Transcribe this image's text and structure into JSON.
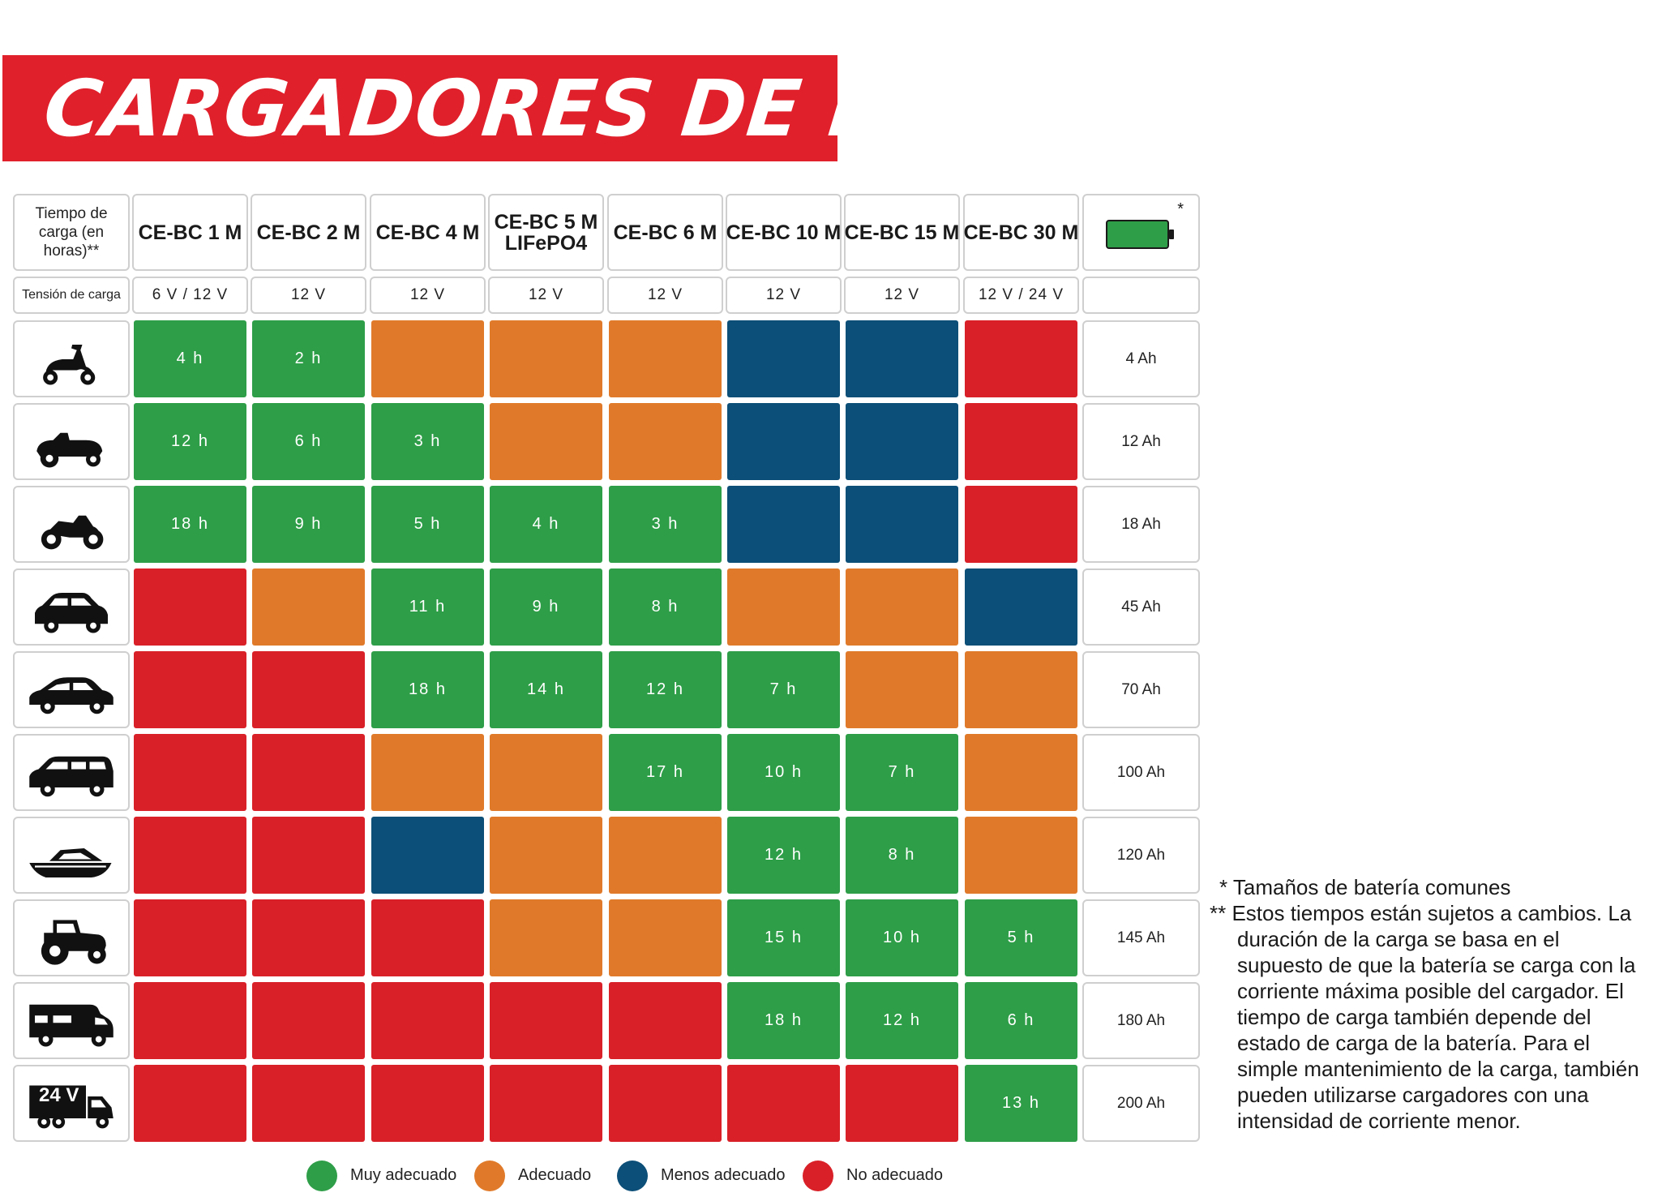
{
  "title": "CARGADORES DE BATERÍAS",
  "corner_label": "Tiempo de carga (en horas)**",
  "voltage_row_label": "Tensión de carga",
  "battery_column_marker": "*",
  "models": [
    {
      "name": "CE-BC 1 M",
      "subname": "",
      "voltage": "6 V / 12 V"
    },
    {
      "name": "CE-BC 2 M",
      "subname": "",
      "voltage": "12 V"
    },
    {
      "name": "CE-BC 4 M",
      "subname": "",
      "voltage": "12 V"
    },
    {
      "name": "CE-BC 5 M",
      "subname": "LIFePO4",
      "voltage": "12 V"
    },
    {
      "name": "CE-BC 6 M",
      "subname": "",
      "voltage": "12 V"
    },
    {
      "name": "CE-BC 10 M",
      "subname": "",
      "voltage": "12 V"
    },
    {
      "name": "CE-BC 15 M",
      "subname": "",
      "voltage": "12 V"
    },
    {
      "name": "CE-BC 30 M",
      "subname": "",
      "voltage": "12 V / 24 V"
    }
  ],
  "colors": {
    "G": "#2e9e48",
    "O": "#e07a2a",
    "B": "#0c4f78",
    "R": "#d92028"
  },
  "chart_data": {
    "type": "table",
    "title": "CARGADORES DE BATERÍAS",
    "rows": [
      {
        "vehicle_icon": "scooter-icon",
        "battery": "4 Ah",
        "ratings": [
          "G",
          "G",
          "O",
          "O",
          "O",
          "B",
          "B",
          "R"
        ],
        "times": [
          "4 h",
          "2 h",
          "",
          "",
          "",
          "",
          "",
          ""
        ]
      },
      {
        "vehicle_icon": "lawn-tractor-icon",
        "battery": "12 Ah",
        "ratings": [
          "G",
          "G",
          "G",
          "O",
          "O",
          "B",
          "B",
          "R"
        ],
        "times": [
          "12 h",
          "6 h",
          "3 h",
          "",
          "",
          "",
          "",
          ""
        ]
      },
      {
        "vehicle_icon": "motorcycle-icon",
        "battery": "18 Ah",
        "ratings": [
          "G",
          "G",
          "G",
          "G",
          "G",
          "B",
          "B",
          "R"
        ],
        "times": [
          "18 h",
          "9 h",
          "5 h",
          "4 h",
          "3 h",
          "",
          "",
          ""
        ]
      },
      {
        "vehicle_icon": "small-car-icon",
        "battery": "45 Ah",
        "ratings": [
          "R",
          "O",
          "G",
          "G",
          "G",
          "O",
          "O",
          "B"
        ],
        "times": [
          "",
          "",
          "11 h",
          "9 h",
          "8 h",
          "",
          "",
          ""
        ]
      },
      {
        "vehicle_icon": "sedan-icon",
        "battery": "70 Ah",
        "ratings": [
          "R",
          "R",
          "G",
          "G",
          "G",
          "G",
          "O",
          "O"
        ],
        "times": [
          "",
          "",
          "18 h",
          "14 h",
          "12 h",
          "7 h",
          "",
          ""
        ]
      },
      {
        "vehicle_icon": "station-wagon-icon",
        "battery": "100 Ah",
        "ratings": [
          "R",
          "R",
          "O",
          "O",
          "G",
          "G",
          "G",
          "O"
        ],
        "times": [
          "",
          "",
          "",
          "",
          "17 h",
          "10 h",
          "7 h",
          ""
        ]
      },
      {
        "vehicle_icon": "boat-icon",
        "battery": "120 Ah",
        "ratings": [
          "R",
          "R",
          "B",
          "O",
          "O",
          "G",
          "G",
          "O"
        ],
        "times": [
          "",
          "",
          "",
          "",
          "",
          "12 h",
          "8 h",
          ""
        ]
      },
      {
        "vehicle_icon": "farm-tractor-icon",
        "battery": "145 Ah",
        "ratings": [
          "R",
          "R",
          "R",
          "O",
          "O",
          "G",
          "G",
          "G"
        ],
        "times": [
          "",
          "",
          "",
          "",
          "",
          "15 h",
          "10 h",
          "5 h"
        ]
      },
      {
        "vehicle_icon": "motorhome-icon",
        "battery": "180 Ah",
        "ratings": [
          "R",
          "R",
          "R",
          "R",
          "R",
          "G",
          "G",
          "G"
        ],
        "times": [
          "",
          "",
          "",
          "",
          "",
          "18 h",
          "12 h",
          "6 h"
        ]
      },
      {
        "vehicle_icon": "truck-24v-icon",
        "vehicle_label": "24 V",
        "battery": "200 Ah",
        "ratings": [
          "R",
          "R",
          "R",
          "R",
          "R",
          "R",
          "R",
          "G"
        ],
        "times": [
          "",
          "",
          "",
          "",
          "",
          "",
          "",
          "13 h"
        ]
      }
    ]
  },
  "legend": [
    {
      "rating": "G",
      "label": "Muy adecuado"
    },
    {
      "rating": "O",
      "label": "Adecuado"
    },
    {
      "rating": "B",
      "label": "Menos adecuado"
    },
    {
      "rating": "R",
      "label": "No adecuado"
    }
  ],
  "notes": {
    "note1": "* Tamaños de batería comunes",
    "note2": "** Estos tiempos están sujetos a cambios. La duración de la carga se basa en el supuesto de que la batería se carga con la corriente máxima posible del cargador. El tiempo de carga también depende del estado de carga de la batería. Para el simple mantenimiento de la carga, también pueden utilizarse cargadores con una intensidad de corriente menor."
  }
}
